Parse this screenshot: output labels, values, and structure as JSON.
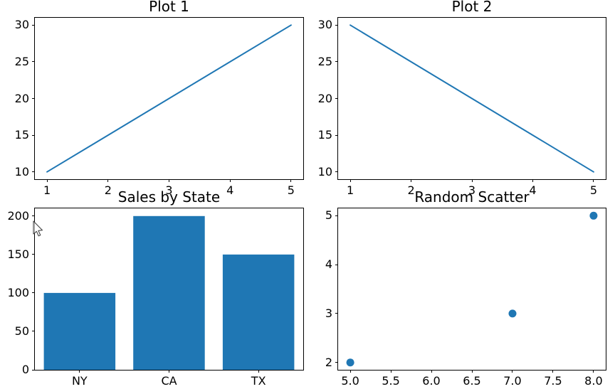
{
  "figure": {
    "background": "#ffffff"
  },
  "style": {
    "series_color": "#1f77b4",
    "spine_color": "#000000",
    "text_color": "#000000"
  },
  "cursor": {
    "visible": true
  },
  "chart_data": [
    {
      "type": "line",
      "title": "Plot 1",
      "x": [
        1,
        2,
        3,
        4,
        5
      ],
      "y": [
        10,
        15,
        20,
        25,
        30
      ],
      "xlim": [
        0.8,
        5.2
      ],
      "ylim": [
        9,
        31
      ],
      "xticks": [
        1,
        2,
        3,
        4,
        5
      ],
      "xtick_labels": [
        "1",
        "2",
        "3",
        "4",
        "5"
      ],
      "yticks": [
        10,
        15,
        20,
        25,
        30
      ],
      "ytick_labels": [
        "10",
        "15",
        "20",
        "25",
        "30"
      ],
      "xlabel": "",
      "ylabel": "",
      "grid": false,
      "legend": null
    },
    {
      "type": "line",
      "title": "Plot 2",
      "x": [
        1,
        2,
        3,
        4,
        5
      ],
      "y": [
        30,
        25,
        20,
        15,
        10
      ],
      "xlim": [
        0.8,
        5.2
      ],
      "ylim": [
        9,
        31
      ],
      "xticks": [
        1,
        2,
        3,
        4,
        5
      ],
      "xtick_labels": [
        "1",
        "2",
        "3",
        "4",
        "5"
      ],
      "yticks": [
        10,
        15,
        20,
        25,
        30
      ],
      "ytick_labels": [
        "10",
        "15",
        "20",
        "25",
        "30"
      ],
      "xlabel": "",
      "ylabel": "",
      "grid": false,
      "legend": null
    },
    {
      "type": "bar",
      "title": "Sales by State",
      "categories": [
        "NY",
        "CA",
        "TX"
      ],
      "values": [
        100,
        200,
        150
      ],
      "bar_width": 0.8,
      "xlim": [
        -0.5,
        2.5
      ],
      "ylim": [
        0,
        210
      ],
      "xticks": [
        0,
        1,
        2
      ],
      "xtick_labels": [
        "NY",
        "CA",
        "TX"
      ],
      "yticks": [
        0,
        50,
        100,
        150,
        200
      ],
      "ytick_labels": [
        "0",
        "50",
        "100",
        "150",
        "200"
      ],
      "xlabel": "",
      "ylabel": "",
      "grid": false,
      "legend": null
    },
    {
      "type": "scatter",
      "title": "Random Scatter",
      "x": [
        5,
        7,
        8
      ],
      "y": [
        2,
        3,
        5
      ],
      "xlim": [
        4.85,
        8.15
      ],
      "ylim": [
        1.85,
        5.15
      ],
      "xticks": [
        5,
        5.5,
        6,
        6.5,
        7,
        7.5,
        8
      ],
      "xtick_labels": [
        "5.0",
        "5.5",
        "6.0",
        "6.5",
        "7.0",
        "7.5",
        "8.0"
      ],
      "yticks": [
        2,
        3,
        4,
        5
      ],
      "ytick_labels": [
        "2",
        "3",
        "4",
        "5"
      ],
      "xlabel": "",
      "ylabel": "",
      "grid": false,
      "legend": null
    }
  ]
}
